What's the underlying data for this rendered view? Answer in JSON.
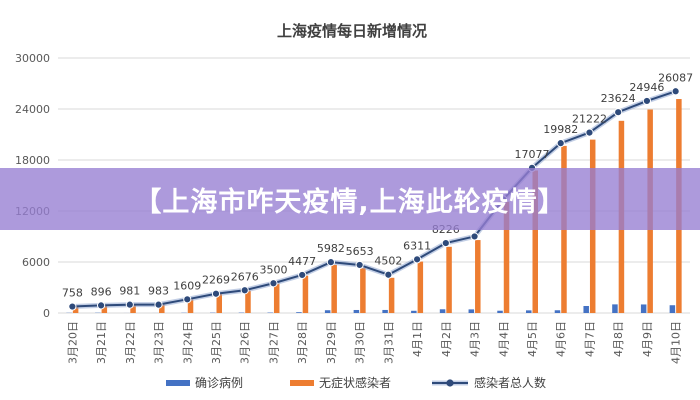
{
  "banner": {
    "text": "【上海市咋天疫情,上海此轮疫情】"
  },
  "chart_data": {
    "type": "bar",
    "title": "上海疫情每日新增情况",
    "categories": [
      "3月20日",
      "3月21日",
      "3月22日",
      "3月23日",
      "3月24日",
      "3月25日",
      "3月26日",
      "3月27日",
      "3月28日",
      "3月29日",
      "3月30日",
      "3月31日",
      "4月1日",
      "4月2日",
      "4月3日",
      "4月4日",
      "4月5日",
      "4月6日",
      "4月7日",
      "4月8日",
      "4月9日",
      "4月10日"
    ],
    "ylim": [
      0,
      30000
    ],
    "yticks": [
      0,
      6000,
      12000,
      18000,
      24000,
      30000
    ],
    "grid": true,
    "legend_position": "bottom",
    "series": [
      {
        "name": "确诊病例",
        "type": "bar",
        "color": "#4472c4",
        "values": [
          24,
          31,
          4,
          4,
          29,
          38,
          45,
          50,
          96,
          326,
          355,
          358,
          260,
          438,
          425,
          268,
          311,
          322,
          824,
          1015,
          1006,
          914
        ]
      },
      {
        "name": "无症状感染者",
        "type": "bar",
        "color": "#ed7d31",
        "values": [
          734,
          865,
          977,
          979,
          1580,
          2231,
          2631,
          3450,
          4381,
          5656,
          5298,
          4144,
          6051,
          7788,
          8581,
          13086,
          16766,
          19660,
          20398,
          22609,
          23937,
          25173
        ]
      },
      {
        "name": "感染者总人数",
        "type": "line",
        "color": "#2e4a7a",
        "values": [
          758,
          896,
          981,
          983,
          1609,
          2269,
          2676,
          3500,
          4477,
          5982,
          5653,
          4502,
          6311,
          8226,
          9006,
          13354,
          17077,
          19982,
          21222,
          23624,
          24946,
          26087
        ],
        "labels": [
          "758",
          "896",
          "981",
          "983",
          "1609",
          "2269",
          "2676",
          "3500",
          "4477",
          "5982",
          "5653",
          "4502",
          "6311",
          "8226",
          "",
          "",
          "17077",
          "19982",
          "21222",
          "23624",
          "24946",
          "26087"
        ]
      }
    ]
  }
}
